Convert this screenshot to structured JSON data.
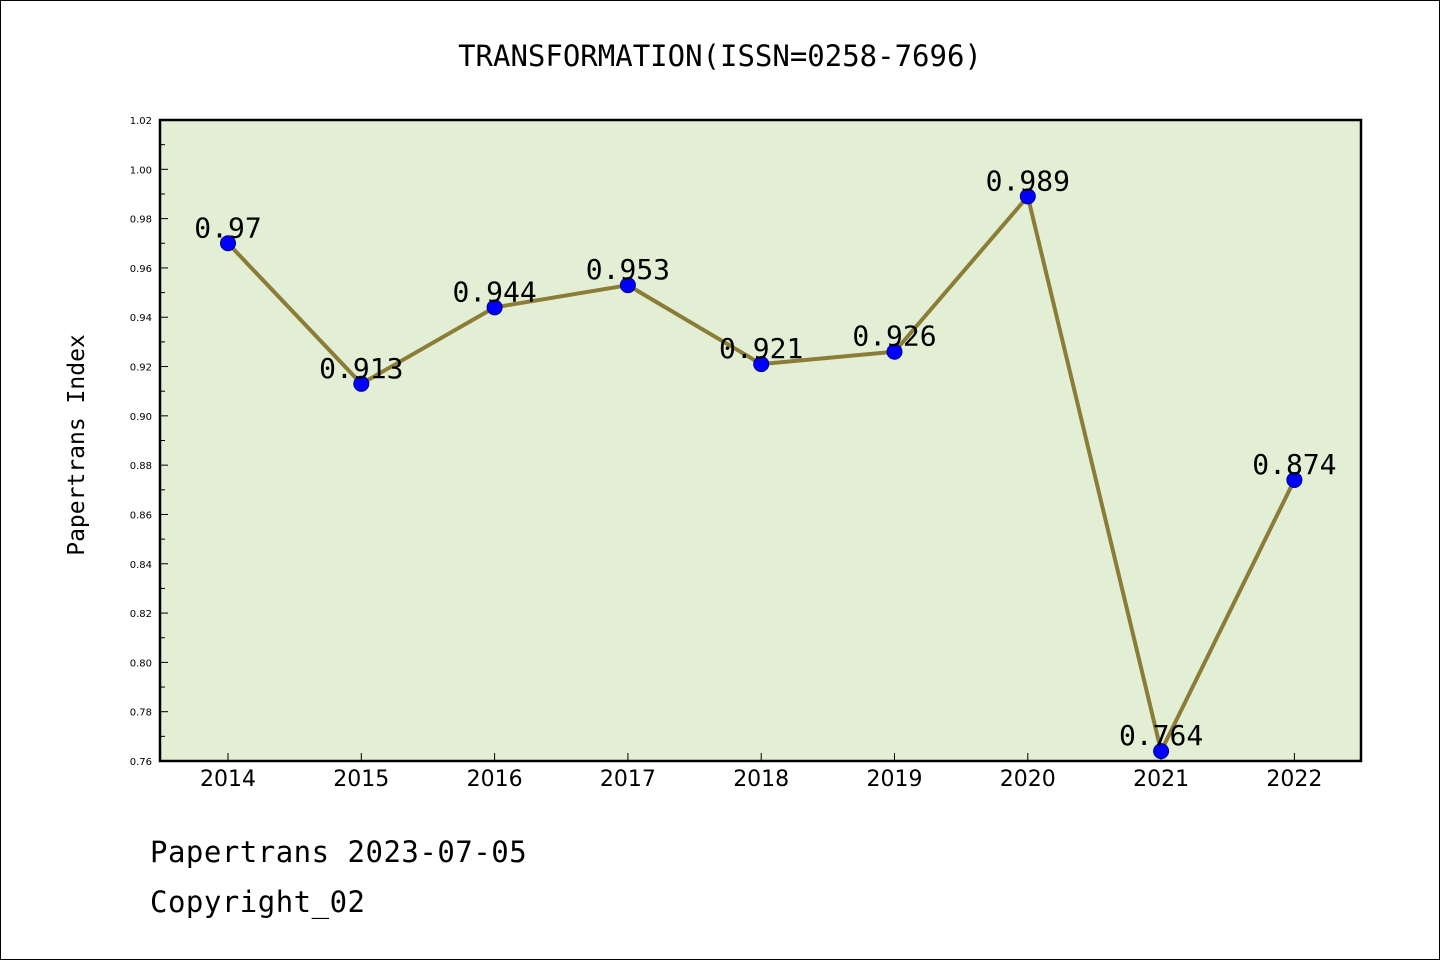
{
  "chart_data": {
    "type": "line",
    "title": "TRANSFORMATION(ISSN=0258-7696)",
    "xlabel": "",
    "ylabel": "Papertrans Index",
    "categories": [
      "2014",
      "2015",
      "2016",
      "2017",
      "2018",
      "2019",
      "2020",
      "2021",
      "2022"
    ],
    "series": [
      {
        "name": "Papertrans Index",
        "values": [
          0.97,
          0.913,
          0.944,
          0.953,
          0.921,
          0.926,
          0.989,
          0.764,
          0.874
        ],
        "labels": [
          "0.97",
          "0.913",
          "0.944",
          "0.953",
          "0.921",
          "0.926",
          "0.989",
          "0.764",
          "0.874"
        ]
      }
    ],
    "ylim": [
      0.76,
      1.02
    ],
    "yticks": [
      "0.76",
      "0.78",
      "0.80",
      "0.82",
      "0.84",
      "0.86",
      "0.88",
      "0.90",
      "0.92",
      "0.94",
      "0.96",
      "0.98",
      "1.00",
      "1.02"
    ],
    "grid": false,
    "colors": {
      "plot_background": "#e2efd4",
      "line": "#8b7d37",
      "marker": "#0000ff"
    }
  },
  "footer": {
    "source": "Papertrans 2023-07-05",
    "copyright": "Copyright_02"
  }
}
